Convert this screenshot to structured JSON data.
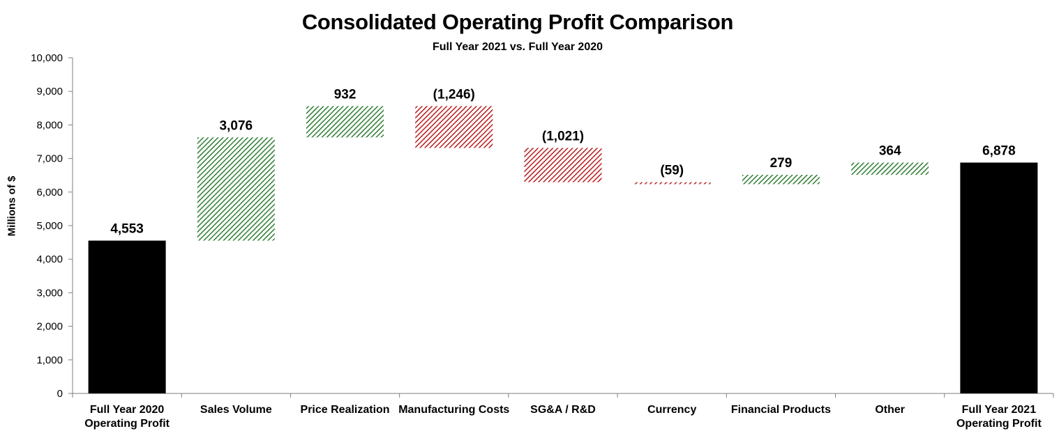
{
  "chart_data": {
    "type": "waterfall",
    "title": "Consolidated Operating Profit Comparison",
    "subtitle": "Full Year 2021 vs. Full Year 2020",
    "ylabel": "Millions of $",
    "xlabel": "",
    "ylim": [
      0,
      10000
    ],
    "yticks": [
      0,
      1000,
      2000,
      3000,
      4000,
      5000,
      6000,
      7000,
      8000,
      9000,
      10000
    ],
    "ytick_labels": [
      "0",
      "1,000",
      "2,000",
      "3,000",
      "4,000",
      "5,000",
      "6,000",
      "7,000",
      "8,000",
      "9,000",
      "10,000"
    ],
    "grid": false,
    "colors": {
      "total": "#000000",
      "increase": "#2e7d32",
      "decrease": "#b71c1c"
    },
    "bars": [
      {
        "category": [
          "Full Year 2020",
          "Operating Profit"
        ],
        "kind": "total",
        "value": 4553,
        "label": "4,553"
      },
      {
        "category": [
          "Sales Volume"
        ],
        "kind": "increase",
        "value": 3076,
        "label": "3,076"
      },
      {
        "category": [
          "Price Realization"
        ],
        "kind": "increase",
        "value": 932,
        "label": "932"
      },
      {
        "category": [
          "Manufacturing Costs"
        ],
        "kind": "decrease",
        "value": -1246,
        "label": "(1,246)"
      },
      {
        "category": [
          "SG&A / R&D"
        ],
        "kind": "decrease",
        "value": -1021,
        "label": "(1,021)"
      },
      {
        "category": [
          "Currency"
        ],
        "kind": "decrease",
        "value": -59,
        "label": "(59)"
      },
      {
        "category": [
          "Financial  Products"
        ],
        "kind": "increase",
        "value": 279,
        "label": "279"
      },
      {
        "category": [
          "Other"
        ],
        "kind": "increase",
        "value": 364,
        "label": "364"
      },
      {
        "category": [
          "Full Year 2021",
          "Operating Profit"
        ],
        "kind": "total",
        "value": 6878,
        "label": "6,878"
      }
    ]
  }
}
